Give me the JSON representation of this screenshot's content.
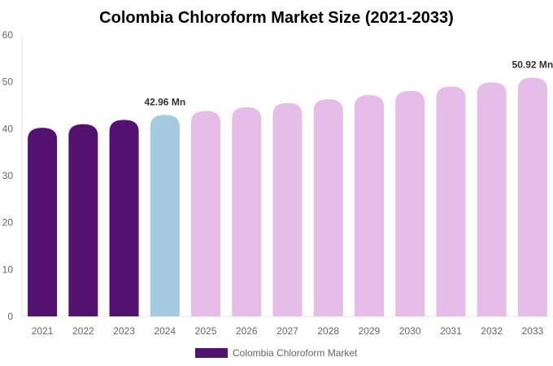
{
  "chart_data": {
    "type": "bar",
    "title": "Colombia Chloroform Market Size (2021-2033)",
    "xlabel": "",
    "ylabel": "",
    "ylim": [
      0,
      60
    ],
    "yticks": [
      0,
      10,
      20,
      30,
      40,
      50,
      60
    ],
    "grid": false,
    "legend_position": "bottom",
    "categories": [
      "2021",
      "2022",
      "2023",
      "2024",
      "2025",
      "2026",
      "2027",
      "2028",
      "2029",
      "2030",
      "2031",
      "2032",
      "2033"
    ],
    "series": [
      {
        "name": "Colombia Chloroform Market",
        "values": [
          40.2,
          41.0,
          41.9,
          42.96,
          43.8,
          44.6,
          45.5,
          46.3,
          47.2,
          48.1,
          49.0,
          49.9,
          50.92
        ]
      }
    ],
    "bar_colors": [
      "#541270",
      "#541270",
      "#541270",
      "#a3cade",
      "#e6bde8",
      "#e6bde8",
      "#e6bde8",
      "#e6bde8",
      "#e6bde8",
      "#e6bde8",
      "#e6bde8",
      "#e6bde8",
      "#e6bde8"
    ],
    "legend_color": "#541270",
    "data_labels": [
      {
        "category": "2024",
        "text": "42.96 Mn"
      },
      {
        "category": "2033",
        "text": "50.92 Mn"
      }
    ]
  }
}
